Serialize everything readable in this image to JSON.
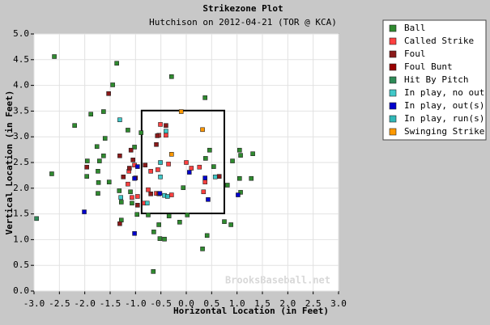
{
  "chart_data": {
    "type": "scatter",
    "title": "Strikezone Plot",
    "subtitle": "Hutchison on 2012-04-21 (TOR @ KCA)",
    "x_label": "Horizontal Location (in Feet)",
    "y_label": "Vertical Location (in Feet)",
    "watermark": "BrooksBaseball.net",
    "xlim": [
      -3.0,
      3.0
    ],
    "ylim": [
      0.0,
      5.0
    ],
    "xticks": [
      {
        "value": -3,
        "label": "-3.0"
      },
      -2.5,
      {
        "value": -2,
        "label": "-2.0"
      },
      -1.5,
      {
        "value": -1,
        "label": "-1.0"
      },
      -0.5,
      {
        "value": 0,
        "label": "0.0"
      },
      0.5,
      {
        "value": 1,
        "label": "1.0"
      },
      1.5,
      {
        "value": 2,
        "label": "2.0"
      },
      2.5,
      {
        "value": 3,
        "label": "3.0"
      }
    ],
    "yticks": [
      {
        "value": 0,
        "label": "0.0"
      },
      0.5,
      {
        "value": 1,
        "label": "1.0"
      },
      1.5,
      {
        "value": 2,
        "label": "2.0"
      },
      2.5,
      {
        "value": 3,
        "label": "3.0"
      },
      3.5,
      {
        "value": 4,
        "label": "4.0"
      },
      4.5,
      {
        "value": 5,
        "label": "5.0"
      }
    ],
    "grid": true,
    "legend": "outside-right-top",
    "strike_zone": {
      "x": [
        -0.88,
        0.75
      ],
      "y": [
        1.51,
        3.51
      ]
    },
    "series": [
      {
        "name": "Ball",
        "color": "#2f8a2f",
        "x": [
          -2.6,
          -1.37,
          -1.45,
          -1.63,
          -0.29,
          0.37,
          -2.2,
          -1.88,
          -1.76,
          -1.6,
          -1.15,
          -1.02,
          -0.89,
          -1.95,
          -1.71,
          -1.63,
          -2.65,
          -1.96,
          -1.74,
          -1.73,
          -1.52,
          -1.74,
          -1.32,
          -1.28,
          -1.1,
          -1.07,
          -1.28,
          -0.97,
          -0.75,
          -0.34,
          0.02,
          -0.13,
          -0.54,
          -0.64,
          -0.52,
          -0.43,
          0.41,
          0.32,
          -0.65,
          0.75,
          0.88,
          0.46,
          0.38,
          0.54,
          0.91,
          1.05,
          1.07,
          1.31,
          1.05,
          1.28,
          0.81,
          1.07,
          -0.06
        ],
        "y": [
          4.56,
          4.43,
          4.01,
          3.49,
          4.17,
          3.76,
          3.22,
          3.44,
          2.81,
          2.97,
          3.13,
          2.8,
          3.08,
          2.53,
          2.53,
          2.63,
          2.28,
          2.23,
          2.33,
          2.11,
          2.12,
          1.9,
          1.95,
          1.73,
          1.93,
          1.71,
          1.38,
          1.49,
          1.48,
          1.46,
          1.48,
          1.34,
          1.29,
          1.15,
          1.02,
          1.01,
          1.08,
          0.82,
          0.38,
          1.35,
          1.29,
          2.74,
          2.58,
          2.42,
          2.53,
          2.74,
          2.64,
          2.67,
          2.19,
          2.19,
          2.06,
          1.92,
          2.01
        ]
      },
      {
        "name": "Called Strike",
        "color": "#ff4040",
        "x": [
          -0.51,
          -0.54,
          -1.15,
          -1.07,
          -0.96,
          -0.83,
          -0.75,
          -1.13,
          -1.02,
          -0.7,
          -0.56,
          0.0,
          0.1,
          0.26,
          0.37,
          0.34,
          -0.29,
          -0.4,
          -0.35,
          -0.59
        ],
        "y": [
          3.24,
          3.03,
          2.08,
          1.82,
          1.84,
          1.71,
          1.97,
          2.33,
          2.45,
          2.33,
          2.36,
          2.5,
          2.39,
          2.41,
          2.12,
          1.93,
          1.87,
          3.03,
          2.47,
          1.9
        ]
      },
      {
        "name": "Foul",
        "color": "#8b1a1a",
        "x": [
          -1.53,
          -1.31,
          -1.09,
          -1.12,
          -1.05,
          -0.81,
          -0.57,
          -0.4,
          -0.59,
          -1.96,
          -0.96,
          -1.24,
          -1.31,
          -0.7,
          -0.54,
          0.65
        ],
        "y": [
          3.84,
          2.63,
          2.74,
          2.39,
          2.55,
          2.45,
          3.02,
          3.22,
          2.85,
          2.41,
          1.67,
          2.22,
          1.31,
          1.89,
          1.89,
          2.23
        ]
      },
      {
        "name": "Foul Bunt",
        "color": "#990000",
        "x": [
          -1.0
        ],
        "y": [
          2.2
        ]
      },
      {
        "name": "Hit By Pitch",
        "color": "#2e8b57",
        "x": [
          -2.95
        ],
        "y": [
          1.41
        ]
      },
      {
        "name": "In play, no out",
        "color": "#40c8c8",
        "x": [
          -1.31,
          -0.4,
          -0.51,
          -1.29,
          -0.77,
          -0.43,
          0.57
        ],
        "y": [
          3.33,
          3.11,
          2.22,
          1.82,
          1.71,
          1.86,
          2.22
        ]
      },
      {
        "name": "In play, out(s)",
        "color": "#0000cc",
        "x": [
          -2.01,
          -1.02,
          -0.96,
          -0.52,
          0.06,
          0.43,
          1.02,
          0.37,
          -1.02
        ],
        "y": [
          1.54,
          1.12,
          2.42,
          1.9,
          2.31,
          1.78,
          1.87,
          2.2,
          2.19
        ]
      },
      {
        "name": "In play, run(s)",
        "color": "#30b8b8",
        "x": [
          -0.51,
          -0.37
        ],
        "y": [
          2.5,
          1.84
        ]
      },
      {
        "name": "Swinging Strike",
        "color": "#ff9900",
        "x": [
          0.32,
          -0.29,
          -0.1
        ],
        "y": [
          3.14,
          2.66,
          3.49
        ]
      }
    ]
  }
}
